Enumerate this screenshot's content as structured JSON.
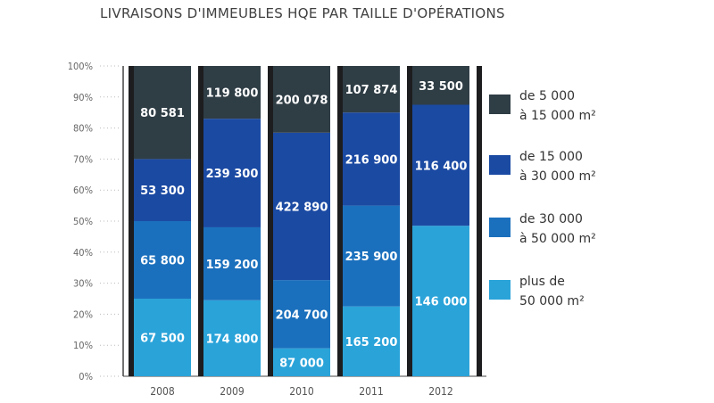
{
  "chart_data": {
    "type": "bar",
    "stacked": true,
    "title": "LIVRAISONS D'IMMEUBLES HQE PAR TAILLE D'OPÉRATIONS",
    "categories": [
      "2008",
      "2009",
      "2010",
      "2011",
      "2012"
    ],
    "yticks": [
      "0%",
      "10%",
      "20%",
      "30%",
      "40%",
      "50%",
      "60%",
      "70%",
      "80%",
      "90%",
      "100%"
    ],
    "ylim": [
      0,
      100
    ],
    "series": [
      {
        "name": "plus de 50 000 m²",
        "legend_lines": [
          "plus de",
          "50 000 m²"
        ],
        "color": "#2aa3d9",
        "labels": [
          "67 500",
          "174 800",
          "87 000",
          "165 200",
          "146 000"
        ],
        "pct": [
          25,
          24.5,
          9,
          22.5,
          48.5
        ]
      },
      {
        "name": "de 30 000 à 50 000 m²",
        "legend_lines": [
          "de 30 000",
          "à 50 000 m²"
        ],
        "color": "#1b70bd",
        "labels": [
          "65 800",
          "159 200",
          "204 700",
          "235 900",
          ""
        ],
        "pct": [
          25,
          23.5,
          22,
          32.5,
          0
        ]
      },
      {
        "name": "de 15 000 à 30 000 m²",
        "legend_lines": [
          "de 15 000",
          "à 30 000 m²"
        ],
        "color": "#1b4aa3",
        "labels": [
          "53 300",
          "239 300",
          "422 890",
          "216 900",
          "116 400"
        ],
        "pct": [
          20,
          35,
          47.5,
          30,
          39
        ]
      },
      {
        "name": "de 5 000 à 15 000 m²",
        "legend_lines": [
          "de 5 000",
          "à 15 000 m²"
        ],
        "color": "#2f3d45",
        "labels": [
          "80 581",
          "119 800",
          "200 078",
          "107 874",
          "33 500"
        ],
        "pct": [
          30,
          17,
          21.5,
          15,
          12.5
        ]
      }
    ]
  }
}
